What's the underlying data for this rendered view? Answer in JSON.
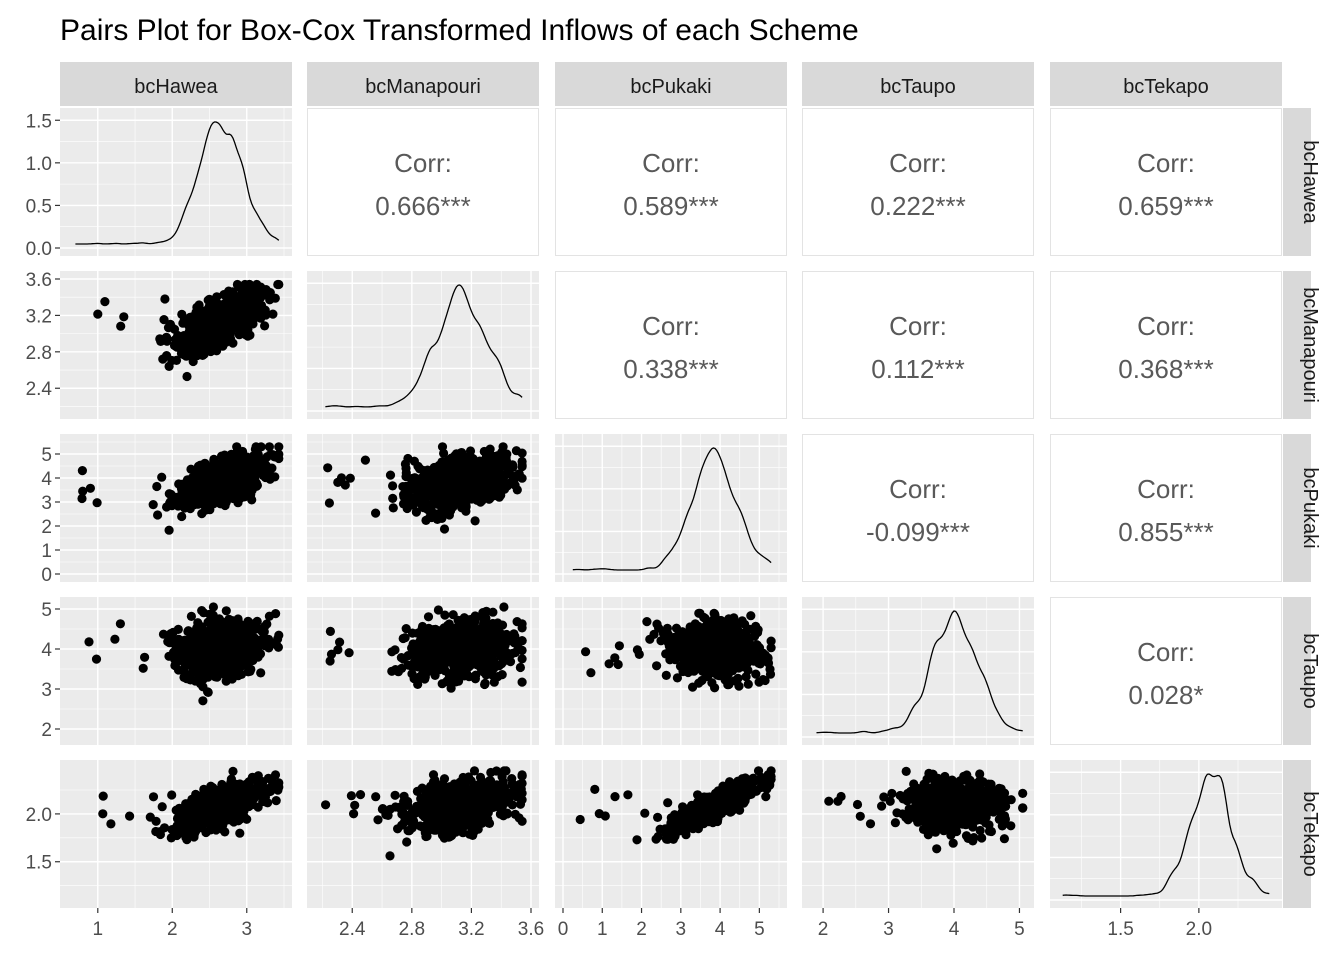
{
  "chart_data": {
    "type": "scatter",
    "title": "Pairs Plot for Box-Cox Transformed Inflows of each Scheme",
    "variables": [
      "bcHawea",
      "bcManapouri",
      "bcPukaki",
      "bcTaupo",
      "bcTekapo"
    ],
    "axes": [
      {
        "lim": [
          0.6,
          3.5
        ],
        "ticks": [
          1,
          2,
          3
        ],
        "tick_labels": [
          "1",
          "2",
          "3"
        ],
        "mu": 2.65,
        "sd": 0.28,
        "min": 0.7,
        "max": 3.43
      },
      {
        "lim": [
          2.15,
          3.6
        ],
        "ticks": [
          2.4,
          2.8,
          3.2,
          3.6
        ],
        "tick_labels": [
          "2.4",
          "2.8",
          "3.2",
          "3.6"
        ],
        "mu": 3.13,
        "sd": 0.17,
        "min": 2.22,
        "max": 3.54
      },
      {
        "lim": [
          0,
          5.5
        ],
        "ticks": [
          0,
          1,
          2,
          3,
          4,
          5
        ],
        "tick_labels": [
          "0",
          "1",
          "2",
          "3",
          "4",
          "5"
        ],
        "mu": 3.85,
        "sd": 0.55,
        "min": 0.25,
        "max": 5.3
      },
      {
        "lim": [
          1.8,
          5.1
        ],
        "ticks": [
          2,
          3,
          4,
          5
        ],
        "tick_labels": [
          "2",
          "3",
          "4",
          "5"
        ],
        "mu": 4.0,
        "sd": 0.35,
        "min": 1.9,
        "max": 5.05
      },
      {
        "lim": [
          1.1,
          2.48
        ],
        "ticks": [
          1.5,
          2.0
        ],
        "tick_labels": [
          "1.5",
          "2.0"
        ],
        "mu": 2.08,
        "sd": 0.13,
        "min": 1.13,
        "max": 2.45
      }
    ],
    "diag_y_axis": {
      "lim": [
        0,
        1.55
      ],
      "ticks": [
        0,
        0.5,
        1.0,
        1.5
      ],
      "tick_labels": [
        "0.0",
        "0.5",
        "1.0",
        "1.5"
      ]
    },
    "correlation_label": "Corr:",
    "correlations": [
      {
        "row": "bcHawea",
        "col": "bcManapouri",
        "label": "0.666***",
        "r": 0.666
      },
      {
        "row": "bcHawea",
        "col": "bcPukaki",
        "label": "0.589***",
        "r": 0.589
      },
      {
        "row": "bcHawea",
        "col": "bcTaupo",
        "label": "0.222***",
        "r": 0.222
      },
      {
        "row": "bcHawea",
        "col": "bcTekapo",
        "label": "0.659***",
        "r": 0.659
      },
      {
        "row": "bcManapouri",
        "col": "bcPukaki",
        "label": "0.338***",
        "r": 0.338
      },
      {
        "row": "bcManapouri",
        "col": "bcTaupo",
        "label": "0.112***",
        "r": 0.112
      },
      {
        "row": "bcManapouri",
        "col": "bcTekapo",
        "label": "0.368***",
        "r": 0.368
      },
      {
        "row": "bcPukaki",
        "col": "bcTaupo",
        "label": "-0.099***",
        "r": -0.099
      },
      {
        "row": "bcPukaki",
        "col": "bcTekapo",
        "label": "0.855***",
        "r": 0.855
      },
      {
        "row": "bcTaupo",
        "col": "bcTekapo",
        "label": "0.028*",
        "r": 0.028
      }
    ],
    "colors": {
      "panel_bg": "#ebebeb",
      "grid_major": "#ffffff",
      "strip_bg": "#d9d9d9",
      "point": "#000000",
      "corr_text": "#595959"
    }
  }
}
